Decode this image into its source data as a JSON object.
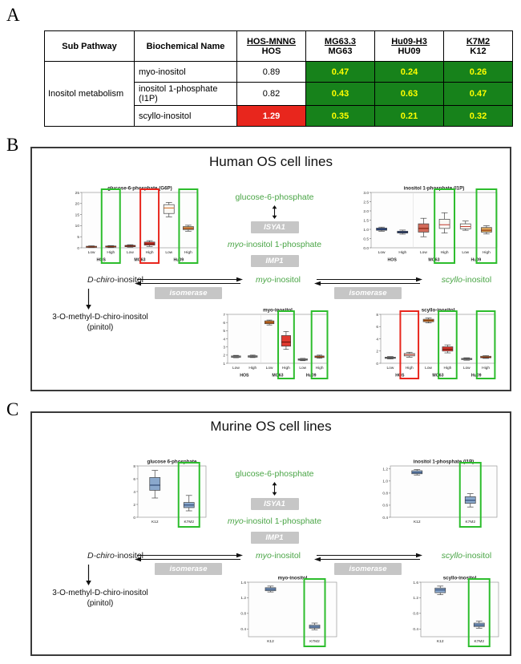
{
  "colors": {
    "table_green": "#17821b",
    "table_green_text": "#ffff00",
    "table_red": "#e8261d",
    "table_red_text": "#ffffff",
    "highlight_green": "#2dbd2d",
    "highlight_red": "#e8261d",
    "pathway_green": "#4aa546",
    "enzyme_box_bg": "#c6c6c6",
    "enzyme_box_text": "#ffffff"
  },
  "panelA": {
    "label": "A",
    "table": {
      "headers": {
        "sub_pathway": "Sub Pathway",
        "biochemical_name": "Biochemical Name",
        "ratios": [
          {
            "numerator": "HOS-MNNG",
            "denominator": "HOS"
          },
          {
            "numerator": "MG63.3",
            "denominator": "MG63"
          },
          {
            "numerator": "Hu09-H3",
            "denominator": "HU09"
          },
          {
            "numerator": "K7M2",
            "denominator": "K12"
          }
        ]
      },
      "sub_pathway_value": "Inositol metabolism",
      "rows": [
        {
          "name": "myo-inositol",
          "values": [
            {
              "text": "0.89",
              "style": "plain"
            },
            {
              "text": "0.47",
              "style": "green"
            },
            {
              "text": "0.24",
              "style": "green"
            },
            {
              "text": "0.26",
              "style": "green"
            }
          ]
        },
        {
          "name": "inositol 1-phosphate (I1P)",
          "values": [
            {
              "text": "0.82",
              "style": "plain"
            },
            {
              "text": "0.43",
              "style": "green"
            },
            {
              "text": "0.63",
              "style": "green"
            },
            {
              "text": "0.47",
              "style": "green"
            }
          ]
        },
        {
          "name": "scyllo-inositol",
          "values": [
            {
              "text": "1.29",
              "style": "red"
            },
            {
              "text": "0.35",
              "style": "green"
            },
            {
              "text": "0.21",
              "style": "green"
            },
            {
              "text": "0.32",
              "style": "green"
            }
          ]
        }
      ]
    }
  },
  "panelB": {
    "label": "B",
    "title": "Human OS cell lines",
    "pathway": {
      "g6p": "glucose-6-phosphate",
      "isya1": "ISYA1",
      "mip_italic": "myo",
      "mip_rest": "-inositol 1-phosphate",
      "imp1": "IMP1",
      "myo_italic": "myo",
      "myo_rest": "-inositol",
      "dchiro_italic": "D-chiro",
      "dchiro_rest": "-inositol",
      "scyllo_italic": "scyllo",
      "scyllo_rest": "-inositol",
      "pinitol_line1": "3-O-methyl-D-chiro-inositol",
      "pinitol_line2": "(pinitol)",
      "isomerase_left": "isomerase",
      "isomerase_right": "isomerase"
    }
  },
  "panelC": {
    "label": "C",
    "title": "Murine OS cell lines",
    "pathway": {
      "g6p": "glucose-6-phosphate",
      "isya1": "ISYA1",
      "mip_italic": "myo",
      "mip_rest": "-inositol 1-phosphate",
      "imp1": "IMP1",
      "myo_italic": "myo",
      "myo_rest": "-inositol",
      "dchiro_italic": "D-chiro",
      "dchiro_rest": "-inositol",
      "scyllo_italic": "scyllo",
      "scyllo_rest": "-inositol",
      "pinitol_line1": "3-O-methyl-D-chiro-inositol",
      "pinitol_line2": "(pinitol)",
      "isomerase_left": "isomerase",
      "isomerase_right": "isomerase"
    }
  },
  "chart_data": {
    "plots": {
      "b_g6p": {
        "type": "box",
        "title": "glucose-6-phosphate (G6P)",
        "ylim": [
          0,
          25
        ],
        "yticks": [
          0,
          5,
          10,
          15,
          20,
          25
        ],
        "group_labels": [
          {
            "text": "HOS",
            "center": 1
          },
          {
            "text": "MG63",
            "center": 3
          },
          {
            "text": "Hu09",
            "center": 5
          }
        ],
        "boxes": [
          {
            "label": "Low",
            "med": 0.4,
            "q1": 0.2,
            "q3": 0.7,
            "lo": 0.1,
            "hi": 0.9,
            "fill": "#e8e8e8",
            "med_color": "#8b2500",
            "hl": null
          },
          {
            "label": "High",
            "med": 0.5,
            "q1": 0.3,
            "q3": 0.8,
            "lo": 0.1,
            "hi": 1.0,
            "fill": "#e8e8e8",
            "med_color": "#8b2500",
            "hl": "green"
          },
          {
            "label": "Low",
            "med": 0.8,
            "q1": 0.5,
            "q3": 1.1,
            "lo": 0.3,
            "hi": 1.4,
            "fill": "#d26a5a",
            "med_color": "#7b1500",
            "hl": null
          },
          {
            "label": "High",
            "med": 1.8,
            "q1": 1.2,
            "q3": 2.6,
            "lo": 0.6,
            "hi": 3.2,
            "fill": "#e0392f",
            "med_color": "#5d0f05",
            "hl": "red"
          },
          {
            "label": "Low",
            "med": 18.0,
            "q1": 15.5,
            "q3": 19.5,
            "lo": 14.0,
            "hi": 20.5,
            "fill": "#faf8f4",
            "med_color": "#d2691e",
            "hl": null
          },
          {
            "label": "High",
            "med": 8.8,
            "q1": 8.2,
            "q3": 9.6,
            "lo": 7.5,
            "hi": 10.2,
            "fill": "#d9a45b",
            "med_color": "#8b2500",
            "hl": "green"
          }
        ]
      },
      "b_i1p": {
        "type": "box",
        "title": "inositol 1-phosphate (I1P)",
        "ylim": [
          0,
          3
        ],
        "yticks": [
          0,
          0.5,
          1,
          1.5,
          2,
          2.5,
          3
        ],
        "ytick_labels": [
          "0.0",
          "0.5",
          "1.0",
          "1.5",
          "2.0",
          "2.5",
          "3.0"
        ],
        "group_labels": [
          {
            "text": "HOS",
            "center": 1
          },
          {
            "text": "MG63",
            "center": 3
          },
          {
            "text": "Hu09",
            "center": 5
          }
        ],
        "boxes": [
          {
            "label": "Low",
            "med": 1.0,
            "q1": 0.95,
            "q3": 1.07,
            "lo": 0.9,
            "hi": 1.12,
            "fill": "#3f5fa0",
            "med_color": "#15244d",
            "hl": null
          },
          {
            "label": "High",
            "med": 0.85,
            "q1": 0.8,
            "q3": 0.9,
            "lo": 0.74,
            "hi": 0.96,
            "fill": "#3f5fa0",
            "med_color": "#15244d",
            "hl": null
          },
          {
            "label": "Low",
            "med": 1.05,
            "q1": 0.85,
            "q3": 1.3,
            "lo": 0.6,
            "hi": 1.6,
            "fill": "#d26a5a",
            "med_color": "#7b1500",
            "hl": null
          },
          {
            "label": "High",
            "med": 1.25,
            "q1": 1.05,
            "q3": 1.55,
            "lo": 0.8,
            "hi": 1.9,
            "fill": "#faf8f4",
            "med_color": "#c0392b",
            "hl": "green"
          },
          {
            "label": "Low",
            "med": 1.15,
            "q1": 1.03,
            "q3": 1.3,
            "lo": 0.95,
            "hi": 1.45,
            "fill": "#faf8f4",
            "med_color": "#c0392b",
            "hl": null
          },
          {
            "label": "High",
            "med": 0.95,
            "q1": 0.85,
            "q3": 1.1,
            "lo": 0.75,
            "hi": 1.2,
            "fill": "#d9a45b",
            "med_color": "#8b2500",
            "hl": "green"
          }
        ]
      },
      "b_myo": {
        "type": "box",
        "title": "myo-inositol",
        "ylim": [
          1,
          7
        ],
        "yticks": [
          1,
          2,
          3,
          4,
          5,
          6,
          7
        ],
        "group_labels": [
          {
            "text": "HOS",
            "center": 1
          },
          {
            "text": "MG63",
            "center": 3
          },
          {
            "text": "Hu09",
            "center": 5
          }
        ],
        "boxes": [
          {
            "label": "Low",
            "med": 1.8,
            "q1": 1.73,
            "q3": 1.9,
            "lo": 1.68,
            "hi": 1.97,
            "fill": "#e8e8e8",
            "med_color": "#555555",
            "hl": null
          },
          {
            "label": "High",
            "med": 1.82,
            "q1": 1.75,
            "q3": 1.92,
            "lo": 1.7,
            "hi": 2.0,
            "fill": "#e8e8e8",
            "med_color": "#555555",
            "hl": null
          },
          {
            "label": "Low",
            "med": 6.0,
            "q1": 5.85,
            "q3": 6.2,
            "lo": 5.7,
            "hi": 6.3,
            "fill": "#e0812f",
            "med_color": "#7b3300",
            "hl": null
          },
          {
            "label": "High",
            "med": 3.6,
            "q1": 3.1,
            "q3": 4.4,
            "lo": 2.7,
            "hi": 4.9,
            "fill": "#e0392f",
            "med_color": "#5d0f05",
            "hl": "green"
          },
          {
            "label": "Low",
            "med": 1.45,
            "q1": 1.38,
            "q3": 1.55,
            "lo": 1.32,
            "hi": 1.6,
            "fill": "#e8e8e8",
            "med_color": "#555555",
            "hl": null
          },
          {
            "label": "High",
            "med": 1.8,
            "q1": 1.7,
            "q3": 1.9,
            "lo": 1.62,
            "hi": 2.0,
            "fill": "#d9a45b",
            "med_color": "#8b2500",
            "hl": "green"
          }
        ]
      },
      "b_scyllo": {
        "type": "box",
        "title": "scyllo-inositol",
        "ylim": [
          0,
          8
        ],
        "yticks": [
          0,
          2,
          4,
          6,
          8
        ],
        "group_labels": [
          {
            "text": "HOS",
            "center": 1
          },
          {
            "text": "MG63",
            "center": 3
          },
          {
            "text": "Hu09",
            "center": 5
          }
        ],
        "boxes": [
          {
            "label": "Low",
            "med": 0.9,
            "q1": 0.8,
            "q3": 1.0,
            "lo": 0.7,
            "hi": 1.1,
            "fill": "#e8e8e8",
            "med_color": "#555555",
            "hl": null
          },
          {
            "label": "High",
            "med": 1.4,
            "q1": 1.2,
            "q3": 1.6,
            "lo": 1.0,
            "hi": 1.8,
            "fill": "#faf8f4",
            "med_color": "#c0392b",
            "hl": "red"
          },
          {
            "label": "Low",
            "med": 7.0,
            "q1": 6.8,
            "q3": 7.2,
            "lo": 6.6,
            "hi": 7.4,
            "fill": "#e0812f",
            "med_color": "#7b3300",
            "hl": null
          },
          {
            "label": "High",
            "med": 2.3,
            "q1": 2.0,
            "q3": 2.7,
            "lo": 1.7,
            "hi": 3.0,
            "fill": "#e0392f",
            "med_color": "#5d0f05",
            "hl": "green"
          },
          {
            "label": "Low",
            "med": 0.7,
            "q1": 0.6,
            "q3": 0.8,
            "lo": 0.5,
            "hi": 0.9,
            "fill": "#e8e8e8",
            "med_color": "#555555",
            "hl": null
          },
          {
            "label": "High",
            "med": 1.0,
            "q1": 0.9,
            "q3": 1.15,
            "lo": 0.8,
            "hi": 1.25,
            "fill": "#d9a45b",
            "med_color": "#8b2500",
            "hl": "green"
          }
        ]
      },
      "c_g6p": {
        "type": "box",
        "title": "glucose 6-phosphate",
        "ylim": [
          0,
          8
        ],
        "yticks": [
          0,
          2,
          4,
          6,
          8
        ],
        "boxes": [
          {
            "label": "K12",
            "med": 5.0,
            "q1": 4.2,
            "q3": 6.2,
            "lo": 3.0,
            "hi": 7.3,
            "fill": "#8aa8cc",
            "med_color": "#1f3864",
            "hl": null
          },
          {
            "label": "K7M2",
            "med": 1.9,
            "q1": 1.5,
            "q3": 2.3,
            "lo": 1.0,
            "hi": 3.4,
            "fill": "#8aa8cc",
            "med_color": "#1f3864",
            "hl": "green"
          }
        ]
      },
      "c_i1p": {
        "type": "box",
        "title": "inositol 1-phosphate (I1P)",
        "ylim": [
          0.4,
          1.25
        ],
        "yticks": [
          0.4,
          0.6,
          0.8,
          1.0,
          1.2
        ],
        "ytick_labels": [
          "0.4",
          "0.6",
          "0.8",
          "1.0",
          "1.2"
        ],
        "boxes": [
          {
            "label": "K12",
            "med": 1.14,
            "q1": 1.12,
            "q3": 1.17,
            "lo": 1.1,
            "hi": 1.19,
            "fill": "#8aa8cc",
            "med_color": "#1f3864",
            "hl": null
          },
          {
            "label": "K7M2",
            "med": 0.68,
            "q1": 0.63,
            "q3": 0.74,
            "lo": 0.57,
            "hi": 0.79,
            "fill": "#8aa8cc",
            "med_color": "#1f3864",
            "hl": "green"
          }
        ]
      },
      "c_myo": {
        "type": "box",
        "title": "myo-inositol",
        "ylim": [
          0.2,
          1.6
        ],
        "yticks": [
          0.4,
          0.8,
          1.2,
          1.6
        ],
        "ytick_labels": [
          "0.4",
          "0.8",
          "1.2",
          "1.6"
        ],
        "boxes": [
          {
            "label": "K12",
            "med": 1.42,
            "q1": 1.38,
            "q3": 1.46,
            "lo": 1.35,
            "hi": 1.5,
            "fill": "#8aa8cc",
            "med_color": "#1f3864",
            "hl": null
          },
          {
            "label": "K7M2",
            "med": 0.45,
            "q1": 0.42,
            "q3": 0.5,
            "lo": 0.38,
            "hi": 0.55,
            "fill": "#8aa8cc",
            "med_color": "#1f3864",
            "hl": "green"
          }
        ]
      },
      "c_scyllo": {
        "type": "box",
        "title": "scyllo-inositol",
        "ylim": [
          0.2,
          1.6
        ],
        "yticks": [
          0.4,
          0.8,
          1.2,
          1.6
        ],
        "ytick_labels": [
          "0.4",
          "0.8",
          "1.2",
          "1.6"
        ],
        "boxes": [
          {
            "label": "K12",
            "med": 1.4,
            "q1": 1.33,
            "q3": 1.45,
            "lo": 1.28,
            "hi": 1.5,
            "fill": "#8aa8cc",
            "med_color": "#1f3864",
            "hl": null
          },
          {
            "label": "K7M2",
            "med": 0.5,
            "q1": 0.46,
            "q3": 0.55,
            "lo": 0.42,
            "hi": 0.6,
            "fill": "#8aa8cc",
            "med_color": "#1f3864",
            "hl": "green"
          }
        ]
      }
    }
  }
}
